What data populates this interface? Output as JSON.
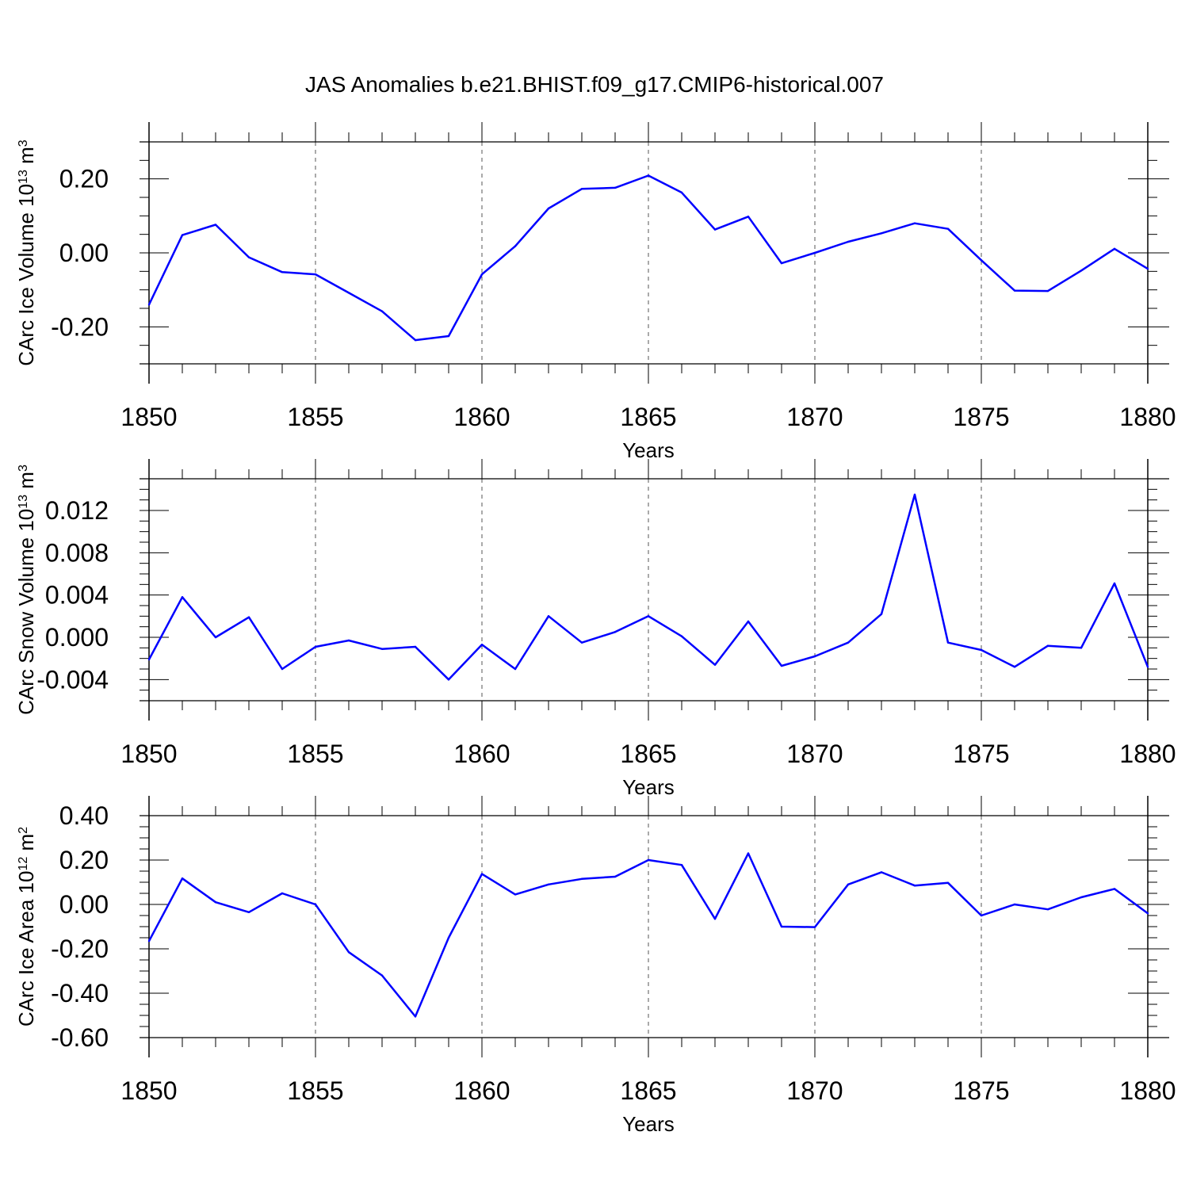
{
  "title": "JAS Anomalies b.e21.BHIST.f09_g17.CMIP6-historical.007",
  "colors": {
    "line": "#0000ff",
    "axes": "#000000",
    "grid": "#555555"
  },
  "chart_data": [
    {
      "type": "line",
      "xlabel": "Years",
      "ylabel": {
        "main": "CArc Ice Volume 10",
        "exp": "13",
        "tail": " m",
        "unit_exp": "3"
      },
      "xlim": [
        1850,
        1880
      ],
      "ylim": [
        -0.3,
        0.3
      ],
      "xticks": [
        "1850",
        "1855",
        "1860",
        "1865",
        "1870",
        "1875",
        "1880"
      ],
      "yticks": [
        {
          "v": 0.2,
          "label": "0.20"
        },
        {
          "v": 0.0,
          "label": "0.00"
        },
        {
          "v": -0.2,
          "label": "-0.20"
        }
      ],
      "grid": "vertical dashed at major x ticks",
      "series": [
        {
          "x": [
            1850,
            1851,
            1852,
            1853,
            1854,
            1855,
            1856,
            1857,
            1858,
            1859,
            1860,
            1861,
            1862,
            1863,
            1864,
            1865,
            1866,
            1867,
            1868,
            1869,
            1870,
            1871,
            1872,
            1873,
            1874,
            1875,
            1876,
            1877,
            1878,
            1879,
            1880
          ],
          "values": [
            -0.14,
            0.048,
            0.076,
            -0.012,
            -0.052,
            -0.058,
            -0.108,
            -0.158,
            -0.236,
            -0.225,
            -0.058,
            0.018,
            0.12,
            0.173,
            0.176,
            0.209,
            0.163,
            0.063,
            0.098,
            -0.028,
            0.0,
            0.03,
            0.053,
            0.08,
            0.065,
            -0.02,
            -0.102,
            -0.103,
            -0.048,
            0.011,
            -0.043
          ]
        }
      ]
    },
    {
      "type": "line",
      "xlabel": "Years",
      "ylabel": {
        "main": "CArc Snow Volume 10",
        "exp": "13",
        "tail": " m",
        "unit_exp": "3"
      },
      "xlim": [
        1850,
        1880
      ],
      "ylim": [
        -0.006,
        0.015
      ],
      "xticks": [
        "1850",
        "1855",
        "1860",
        "1865",
        "1870",
        "1875",
        "1880"
      ],
      "yticks": [
        {
          "v": 0.012,
          "label": "0.012"
        },
        {
          "v": 0.008,
          "label": "0.008"
        },
        {
          "v": 0.004,
          "label": "0.004"
        },
        {
          "v": 0.0,
          "label": "0.000"
        },
        {
          "v": -0.004,
          "label": "-0.004"
        }
      ],
      "grid": "vertical dashed at major x ticks",
      "series": [
        {
          "x": [
            1850,
            1851,
            1852,
            1853,
            1854,
            1855,
            1856,
            1857,
            1858,
            1859,
            1860,
            1861,
            1862,
            1863,
            1864,
            1865,
            1866,
            1867,
            1868,
            1869,
            1870,
            1871,
            1872,
            1873,
            1874,
            1875,
            1876,
            1877,
            1878,
            1879,
            1880
          ],
          "values": [
            -0.0021,
            0.0038,
            0.0,
            0.0019,
            -0.003,
            -0.0009,
            -0.0003,
            -0.0011,
            -0.0009,
            -0.004,
            -0.0007,
            -0.003,
            0.002,
            -0.0005,
            0.0005,
            0.002,
            0.0001,
            -0.0026,
            0.0015,
            -0.0027,
            -0.0018,
            -0.0005,
            0.0022,
            0.0135,
            -0.0005,
            -0.0012,
            -0.0028,
            -0.0008,
            -0.001,
            0.0051,
            -0.0028
          ]
        }
      ]
    },
    {
      "type": "line",
      "xlabel": "Years",
      "ylabel": {
        "main": "CArc Ice Area 10",
        "exp": "12",
        "tail": " m",
        "unit_exp": "2"
      },
      "xlim": [
        1850,
        1880
      ],
      "ylim": [
        -0.6,
        0.4
      ],
      "xticks": [
        "1850",
        "1855",
        "1860",
        "1865",
        "1870",
        "1875",
        "1880"
      ],
      "yticks": [
        {
          "v": 0.4,
          "label": "0.40"
        },
        {
          "v": 0.2,
          "label": "0.20"
        },
        {
          "v": 0.0,
          "label": "0.00"
        },
        {
          "v": -0.2,
          "label": "-0.20"
        },
        {
          "v": -0.4,
          "label": "-0.40"
        },
        {
          "v": -0.6,
          "label": "-0.60"
        }
      ],
      "grid": "vertical dashed at major x ticks",
      "series": [
        {
          "x": [
            1850,
            1851,
            1852,
            1853,
            1854,
            1855,
            1856,
            1857,
            1858,
            1859,
            1860,
            1861,
            1862,
            1863,
            1864,
            1865,
            1866,
            1867,
            1868,
            1869,
            1870,
            1871,
            1872,
            1873,
            1874,
            1875,
            1876,
            1877,
            1878,
            1879,
            1880
          ],
          "values": [
            -0.165,
            0.117,
            0.01,
            -0.035,
            0.05,
            0.0,
            -0.215,
            -0.32,
            -0.505,
            -0.15,
            0.137,
            0.045,
            0.09,
            0.115,
            0.125,
            0.2,
            0.178,
            -0.065,
            0.23,
            -0.1,
            -0.102,
            0.09,
            0.145,
            0.085,
            0.097,
            -0.05,
            0.0,
            -0.022,
            0.032,
            0.07,
            -0.04
          ]
        }
      ]
    }
  ]
}
